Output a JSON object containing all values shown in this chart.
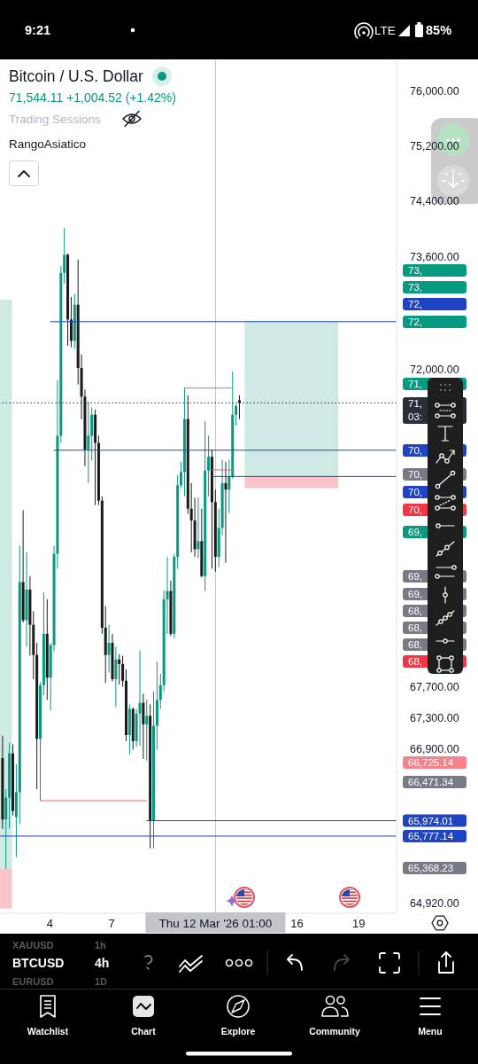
{
  "chart_data": {
    "type": "candlestick",
    "title": "Bitcoin / U.S. Dollar",
    "subtitle": "71,544.11 +1,004.52 (+1.42%)",
    "x": [
      "2026-03-01T17:00",
      "2026-03-01T21:00",
      "2026-03-02T01:00",
      "2026-03-02T05:00",
      "2026-03-02T09:00",
      "2026-03-02T13:00",
      "2026-03-02T17:00",
      "2026-03-02T21:00",
      "2026-03-03T01:00",
      "2026-03-03T05:00",
      "2026-03-03T09:00",
      "2026-03-03T13:00",
      "2026-03-03T17:00",
      "2026-03-03T21:00",
      "2026-03-04T01:00",
      "2026-03-04T05:00",
      "2026-03-04T09:00",
      "2026-03-04T13:00",
      "2026-03-04T17:00",
      "2026-03-04T21:00",
      "2026-03-05T01:00",
      "2026-03-05T05:00",
      "2026-03-05T09:00",
      "2026-03-05T13:00",
      "2026-03-05T17:00",
      "2026-03-05T21:00",
      "2026-03-06T01:00",
      "2026-03-06T05:00",
      "2026-03-06T09:00",
      "2026-03-06T13:00",
      "2026-03-06T17:00",
      "2026-03-06T21:00",
      "2026-03-07T01:00",
      "2026-03-07T05:00",
      "2026-03-07T09:00",
      "2026-03-07T13:00",
      "2026-03-07T17:00",
      "2026-03-07T21:00",
      "2026-03-08T01:00",
      "2026-03-08T05:00",
      "2026-03-08T09:00",
      "2026-03-08T13:00",
      "2026-03-08T17:00",
      "2026-03-08T21:00",
      "2026-03-09T01:00",
      "2026-03-09T05:00",
      "2026-03-09T09:00",
      "2026-03-09T13:00",
      "2026-03-09T17:00",
      "2026-03-09T21:00",
      "2026-03-10T01:00",
      "2026-03-10T05:00",
      "2026-03-10T09:00",
      "2026-03-10T13:00",
      "2026-03-10T17:00",
      "2026-03-10T21:00",
      "2026-03-11T01:00",
      "2026-03-11T05:00",
      "2026-03-11T09:00",
      "2026-03-11T13:00",
      "2026-03-11T17:00",
      "2026-03-11T21:00",
      "2026-03-12T01:00",
      "2026-03-12T05:00",
      "2026-03-12T09:00",
      "2026-03-12T13:00",
      "2026-03-12T17:00",
      "2026-03-12T21:00",
      "2026-03-13T01:00",
      "2026-03-13T05:00"
    ],
    "ohlc": [
      [
        66780,
        67070,
        65870,
        65990
      ],
      [
        65990,
        66380,
        65360,
        66270
      ],
      [
        66270,
        66980,
        65870,
        66840
      ],
      [
        66840,
        66960,
        66040,
        66100
      ],
      [
        66020,
        66700,
        65510,
        66340
      ],
      [
        66340,
        69590,
        65930,
        69100
      ],
      [
        69100,
        70070,
        68560,
        68590
      ],
      [
        68590,
        69500,
        68240,
        69000
      ],
      [
        69000,
        69180,
        68120,
        68530
      ],
      [
        68530,
        68710,
        67810,
        68130
      ],
      [
        68130,
        68290,
        66380,
        67030
      ],
      [
        67030,
        67770,
        66230,
        67730
      ],
      [
        67730,
        68960,
        67600,
        68410
      ],
      [
        68410,
        68870,
        67540,
        67830
      ],
      [
        67830,
        68290,
        67400,
        68260
      ],
      [
        68260,
        69590,
        68180,
        69480
      ],
      [
        69480,
        71860,
        69280,
        71090
      ],
      [
        71090,
        73470,
        70990,
        73370
      ],
      [
        73370,
        74010,
        73220,
        73630
      ],
      [
        73630,
        73650,
        72340,
        72710
      ],
      [
        72710,
        73030,
        72320,
        72410
      ],
      [
        72410,
        73070,
        72300,
        72920
      ],
      [
        72920,
        73560,
        71800,
        72030
      ],
      [
        72030,
        72220,
        71320,
        71630
      ],
      [
        71630,
        71730,
        70670,
        70900
      ],
      [
        70900,
        71560,
        70440,
        71090
      ],
      [
        71090,
        71480,
        70750,
        71380
      ],
      [
        71380,
        71450,
        70140,
        70990
      ],
      [
        70990,
        71090,
        70140,
        70200
      ],
      [
        70200,
        70260,
        68410,
        68490
      ],
      [
        68490,
        68780,
        67760,
        68130
      ],
      [
        68130,
        68530,
        67900,
        68290
      ],
      [
        68290,
        68410,
        67780,
        67810
      ],
      [
        67810,
        68240,
        67450,
        68070
      ],
      [
        68070,
        68140,
        67740,
        68010
      ],
      [
        68010,
        68120,
        67710,
        67790
      ],
      [
        67790,
        67940,
        67000,
        67080
      ],
      [
        67080,
        67480,
        66830,
        67420
      ],
      [
        67420,
        67440,
        66890,
        67000
      ],
      [
        67000,
        67420,
        66930,
        67360
      ],
      [
        67360,
        68190,
        66940,
        67500
      ],
      [
        67500,
        67620,
        66770,
        67220
      ],
      [
        67220,
        67540,
        66750,
        67330
      ],
      [
        67330,
        67480,
        65620,
        65970
      ],
      [
        65970,
        67650,
        65620,
        67200
      ],
      [
        67200,
        68040,
        66890,
        67540
      ],
      [
        67540,
        67880,
        67420,
        67730
      ],
      [
        67730,
        68990,
        67650,
        68870
      ],
      [
        68870,
        69440,
        68410,
        68980
      ],
      [
        68980,
        69120,
        68380,
        68410
      ],
      [
        68410,
        69480,
        68350,
        69440
      ],
      [
        69440,
        70550,
        69280,
        70410
      ],
      [
        70410,
        70730,
        70370,
        70590
      ],
      [
        70590,
        71750,
        70260,
        71320
      ],
      [
        71320,
        71650,
        70020,
        70090
      ],
      [
        70090,
        70440,
        69500,
        69930
      ],
      [
        69930,
        70240,
        69440,
        69540
      ],
      [
        69540,
        70240,
        69420,
        69650
      ],
      [
        69650,
        70090,
        69160,
        69180
      ],
      [
        69180,
        71290,
        68980,
        70610
      ],
      [
        70610,
        71090,
        70260,
        70800
      ],
      [
        70800,
        70900,
        69280,
        70180
      ],
      [
        70180,
        70350,
        69240,
        69440
      ],
      [
        69440,
        70090,
        69300,
        69830
      ],
      [
        69830,
        70760,
        69730,
        70440
      ],
      [
        70440,
        70730,
        69360,
        70350
      ],
      [
        70350,
        70760,
        70030,
        70530
      ],
      [
        70530,
        71980,
        70500,
        71380
      ],
      [
        71380,
        71530,
        71230,
        71500
      ],
      [
        71580,
        71650,
        71320,
        71544.11
      ]
    ],
    "colors": [
      "#1c1c1c",
      "#089981",
      "#089981",
      "#1c1c1c",
      "#089981",
      "#089981",
      "#1c1c1c",
      "#089981",
      "#1c1c1c",
      "#1c1c1c",
      "#1c1c1c",
      "#089981",
      "#089981",
      "#1c1c1c",
      "#089981",
      "#089981",
      "#089981",
      "#089981",
      "#089981",
      "#1c1c1c",
      "#1c1c1c",
      "#089981",
      "#1c1c1c",
      "#1c1c1c",
      "#1c1c1c",
      "#089981",
      "#089981",
      "#1c1c1c",
      "#1c1c1c",
      "#1c1c1c",
      "#1c1c1c",
      "#089981",
      "#1c1c1c",
      "#089981",
      "#1c1c1c",
      "#1c1c1c",
      "#1c1c1c",
      "#089981",
      "#1c1c1c",
      "#089981",
      "#089981",
      "#1c1c1c",
      "#089981",
      "#1c1c1c",
      "#089981",
      "#089981",
      "#089981",
      "#089981",
      "#089981",
      "#1c1c1c",
      "#089981",
      "#089981",
      "#089981",
      "#089981",
      "#1c1c1c",
      "#1c1c1c",
      "#1c1c1c",
      "#089981",
      "#1c1c1c",
      "#089981",
      "#089981",
      "#1c1c1c",
      "#1c1c1c",
      "#089981",
      "#089981",
      "#1c1c1c",
      "#089981",
      "#089981",
      "#089981",
      "#1c1c1c"
    ],
    "series": [
      {
        "type": "line",
        "x": [
          "2026-03-04T01:00",
          "2026-03-20T20:00"
        ],
        "values": [
          72680,
          72680
        ],
        "color": "#2043c4"
      },
      {
        "type": "line",
        "x": [
          "2026-03-04T05:00",
          "2026-03-20T20:00"
        ],
        "values": [
          70890,
          70890
        ],
        "color": "#2043c4"
      },
      {
        "type": "line",
        "x": [
          "2026-03-11T21:00",
          "2026-03-20T20:00"
        ],
        "values": [
          70530,
          70530
        ],
        "color": "#2043c4"
      },
      {
        "type": "line",
        "x": [
          "2026-03-08T17:00",
          "2026-03-20T20:00"
        ],
        "values": [
          65974.01,
          65974.01
        ],
        "color": "#2043c4",
        "value_labels": [
          null,
          "65,974.01"
        ]
      },
      {
        "type": "line",
        "x": [
          "2026-03-01T14:00",
          "2026-03-20T20:00"
        ],
        "values": [
          65777.14,
          65777.14
        ],
        "color": "#2043c4",
        "value_labels": [
          null,
          "65,777.14"
        ]
      },
      {
        "type": "line",
        "x": [
          "2026-03-03T13:00",
          "2026-03-08T17:00"
        ],
        "values": [
          66230,
          66230
        ],
        "color": "#f06272"
      },
      {
        "type": "line",
        "x": [
          "2026-03-10T13:00",
          "2026-03-12T21:00"
        ],
        "values": [
          71750,
          71750
        ],
        "color": "#f06272"
      },
      {
        "type": "line",
        "x": [
          "2026-03-11T21:00",
          "2026-03-12T21:00"
        ],
        "values": [
          70620,
          70620
        ],
        "color": "#f06272"
      },
      {
        "type": "line",
        "x": [
          "2026-03-13T11:00",
          "2026-03-18T00:00"
        ],
        "values": [
          null,
          null
        ],
        "lower": [
          70530,
          70530
        ],
        "upper": [
          72680,
          72680
        ],
        "color": "#cfeae5"
      },
      {
        "type": "line",
        "x": [
          "2026-03-13T11:00",
          "2026-03-18T00:00"
        ],
        "values": [
          null,
          null
        ],
        "lower": [
          70370,
          70370
        ],
        "upper": [
          70530,
          70530
        ],
        "color": "#f9c4c9"
      },
      {
        "type": "line",
        "x": [
          "2026-03-01T14:00",
          "2026-03-02T04:00"
        ],
        "values": [
          null,
          null
        ],
        "lower": [
          65360,
          65360
        ],
        "upper": [
          72990,
          72990
        ],
        "color": "#cfeae5"
      },
      {
        "type": "line",
        "x": [
          "2026-03-01T14:00",
          "2026-03-02T04:00"
        ],
        "values": [
          null,
          null
        ],
        "lower": [
          64860,
          64860
        ],
        "upper": [
          65360,
          65360
        ],
        "color": "#f9c4c9"
      }
    ],
    "xlim": [
      "2026-03-01T14:00",
      "2026-03-20T20:00"
    ],
    "xticks": [
      {
        "value": "2026-03-04",
        "label": "4"
      },
      {
        "value": "2026-03-07",
        "label": "7"
      },
      {
        "value": "2026-03-16",
        "label": "16"
      },
      {
        "value": "2026-03-19",
        "label": "19"
      }
    ],
    "ylim": [
      64800,
      76460
    ],
    "log": true,
    "yticks": [
      {
        "value": 76000,
        "label": "76,000.00"
      },
      {
        "value": 75200,
        "label": "75,200.00"
      },
      {
        "value": 74400,
        "label": "74,400.00"
      },
      {
        "value": 73600,
        "label": "73,600.00"
      },
      {
        "value": 72000,
        "label": "72,000.00"
      },
      {
        "value": 67700,
        "label": "67,700.00"
      },
      {
        "value": 67300,
        "label": "67,300.00"
      },
      {
        "value": 66900,
        "label": "66,900.00"
      },
      {
        "value": 64920,
        "label": "64,920.00"
      }
    ],
    "ref_lines": [
      {
        "axis": "y",
        "value": 71544.11,
        "color": "#2a2e39",
        "line_style": "dotted"
      },
      {
        "axis": "x",
        "value": "2026-03-12T01:00",
        "label": "Thu 12 Mar '26 01:00",
        "color": "#c3c5cb"
      }
    ],
    "annotations": [
      "9:21",
      "LTE",
      "85%",
      "Trading Sessions",
      "RangoAsiatico",
      "XAUUSD",
      "1h",
      "BTCUSD",
      "4h",
      "EURUSD",
      "1D",
      "Watchlist",
      "Chart",
      "Explore",
      "Community",
      "Menu",
      "73,",
      "73,",
      "72,",
      "72,",
      "71,",
      "71,",
      "03:",
      "70,",
      "70,",
      "70,",
      "70,",
      "69,",
      "69,",
      "69,",
      "68,",
      "68,",
      "68,",
      "68,",
      "66,725.14",
      "66,471.34",
      "65,368.23"
    ]
  }
}
